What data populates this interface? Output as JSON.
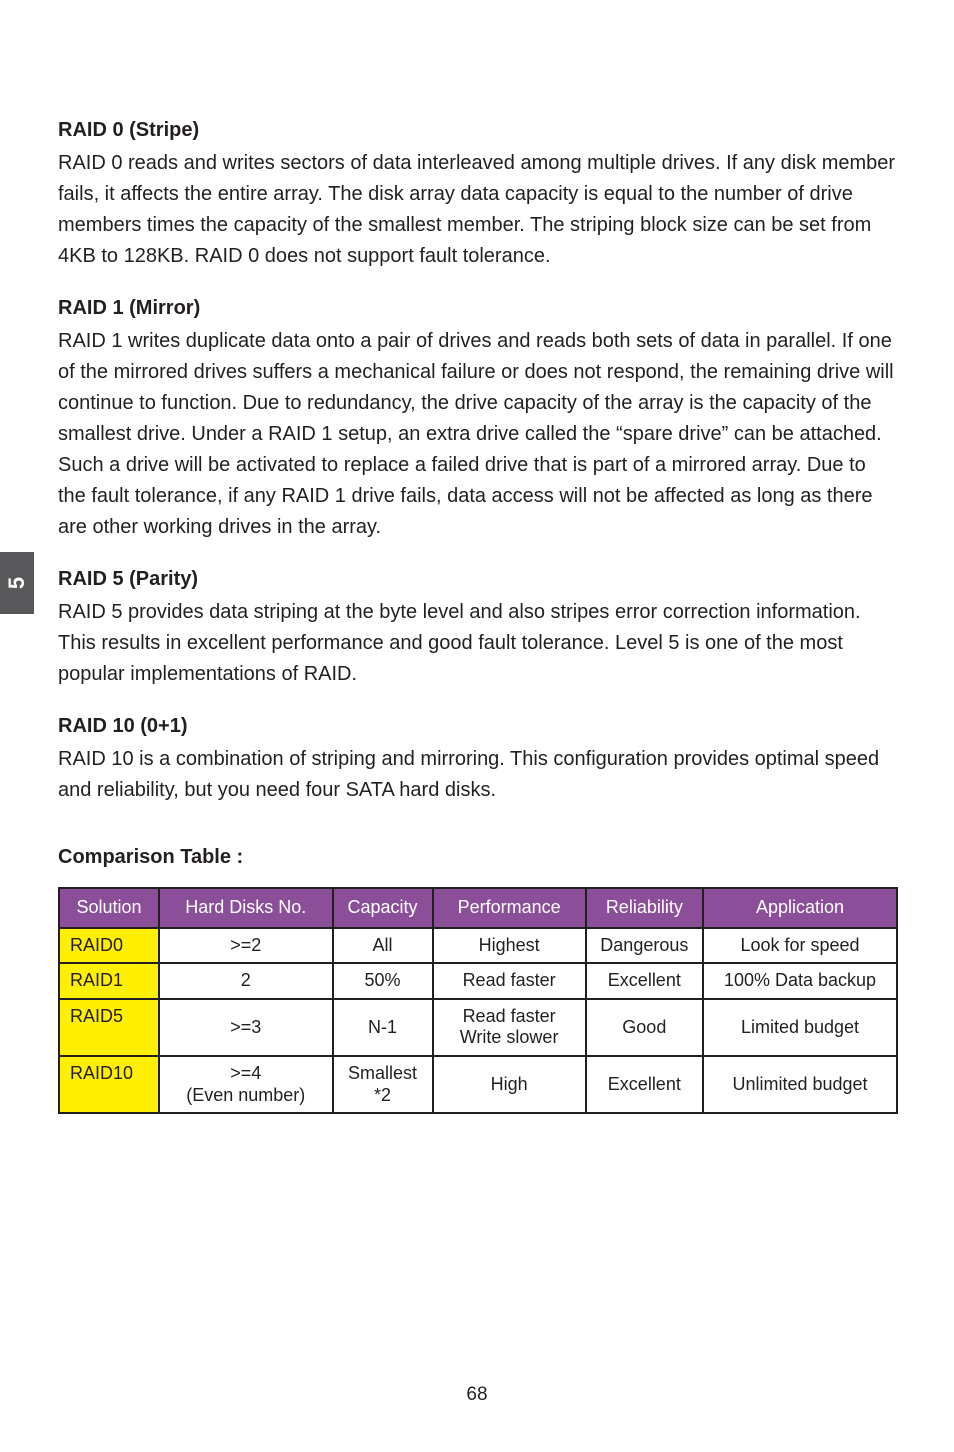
{
  "sidetab": "5",
  "sections": [
    {
      "heading": "RAID 0 (Stripe)",
      "body": "RAID 0 reads and writes sectors of data interleaved among multiple drives. If any disk member fails, it affects the entire array. The disk array data capacity is equal to the number of drive members times the capacity of the smallest member.  The striping block size can be set from 4KB to 128KB. RAID 0 does not support fault tolerance."
    },
    {
      "heading": "RAID 1 (Mirror)",
      "body": "RAID 1 writes duplicate data onto a pair of drives and reads both sets of data in parallel. If one of the mirrored drives suffers a mechanical failure or does not respond, the remaining drive will continue to function. Due to redundancy, the drive capacity of the array is the capacity of the smallest drive. Under a RAID 1 setup, an extra drive called the “spare drive” can be attached. Such a drive will be activated to replace a failed drive that is part of a mirrored array. Due to the fault tolerance, if any RAID 1 drive fails, data access will not be affected as long as there are other working drives in the array."
    },
    {
      "heading": "RAID 5 (Parity)",
      "body": "RAID 5 provides data striping at the byte level and also stripes error correction information. This results in excellent performance and good fault tolerance. Level 5 is one of the most popular implementations of RAID."
    },
    {
      "heading": "RAID 10 (0+1)",
      "body": "RAID 10 is a combination of striping and mirroring. This configuration provides optimal speed and reliability, but you need four SATA hard disks."
    }
  ],
  "comparison_label": "Comparison Table :",
  "table": {
    "header_bg": "#8b4f9a",
    "header_fg": "#ffffff",
    "sol_bg": "#ffef00",
    "border": "#231f20",
    "columns": [
      "Solution",
      "Hard Disks No.",
      "Capacity",
      "Performance",
      "Reliability",
      "Application"
    ],
    "rows": [
      {
        "sol": "RAID0",
        "hd": ">=2",
        "cap": "All",
        "perf": "Highest",
        "rel": "Dangerous",
        "app": "Look for speed"
      },
      {
        "sol": "RAID1",
        "hd": "2",
        "cap": "50%",
        "perf": "Read faster",
        "rel": "Excellent",
        "app": "100% Data backup"
      },
      {
        "sol": "RAID5",
        "hd": ">=3",
        "cap": "N-1",
        "perf": "Read faster\nWrite slower",
        "rel": "Good",
        "app": "Limited budget"
      },
      {
        "sol": "RAID10",
        "hd": ">=4\n(Even number)",
        "cap": "Smallest\n*2",
        "perf": "High",
        "rel": "Excellent",
        "app": "Unlimited budget"
      }
    ]
  },
  "page_number": "68"
}
